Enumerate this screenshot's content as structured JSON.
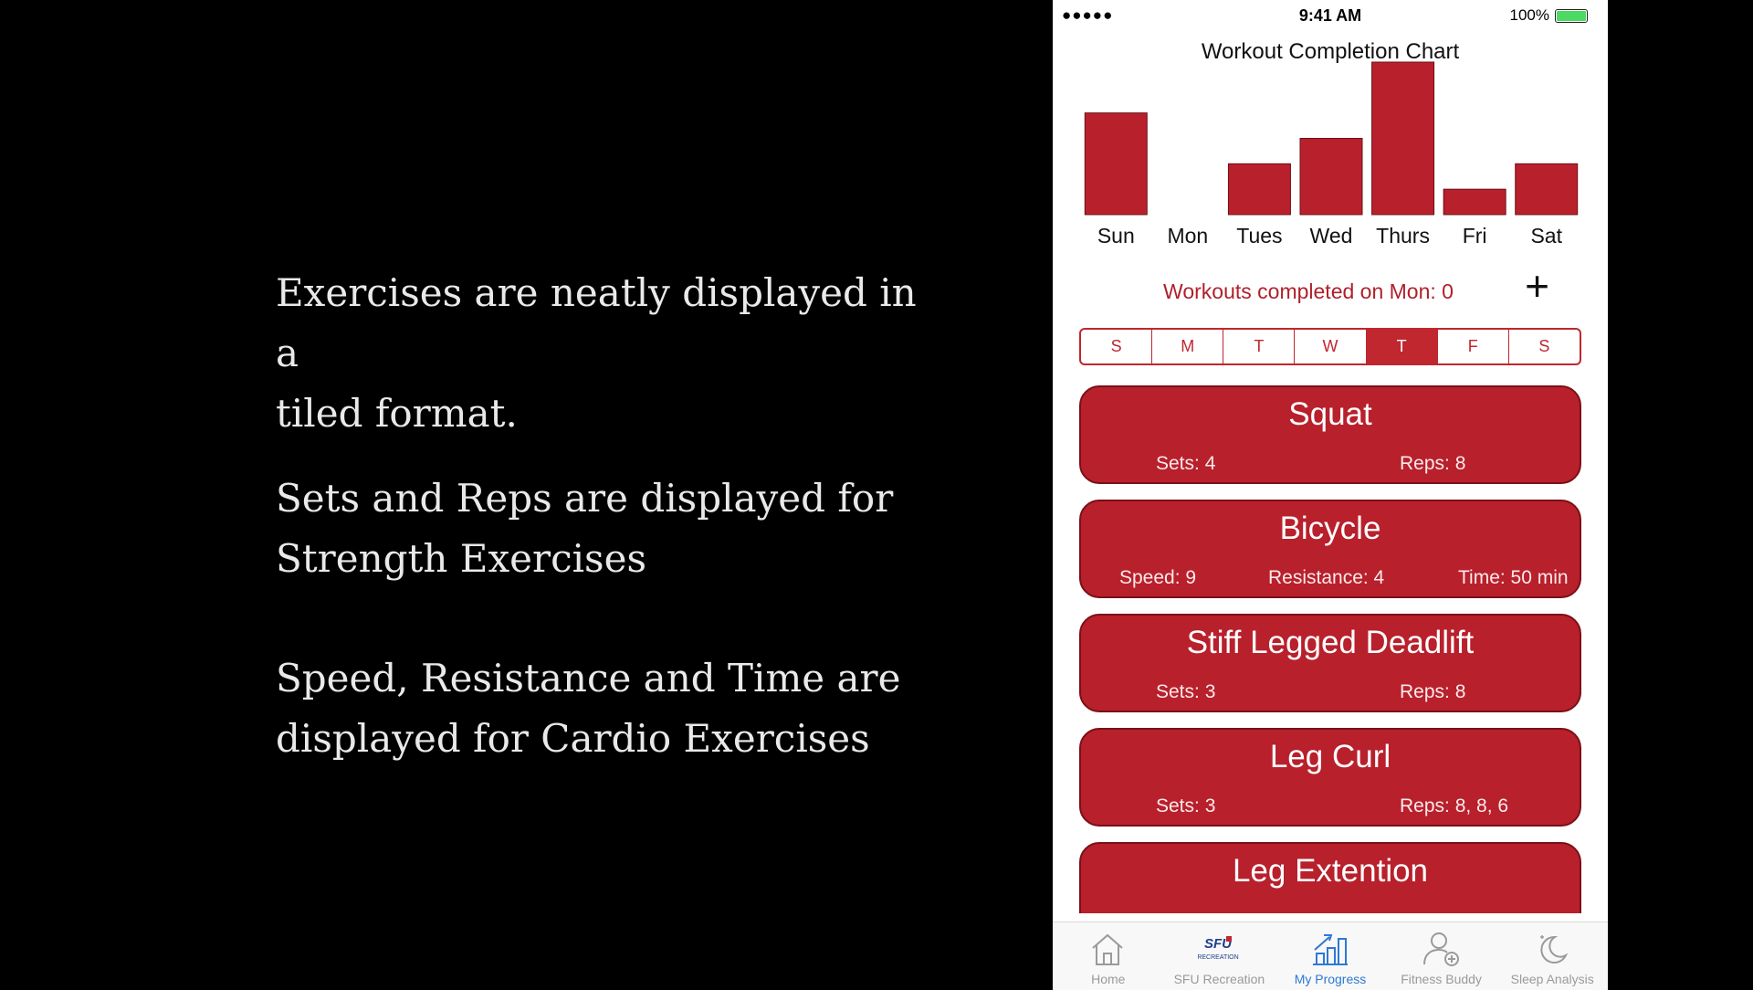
{
  "captions": [
    "Exercises are neatly displayed in a\ntiled format.",
    "Sets and Reps are displayed for\nStrength Exercises",
    "Speed, Resistance and Time are\ndisplayed for Cardio Exercises"
  ],
  "status_bar": {
    "signal": "●●●●●",
    "time": "9:41 AM",
    "battery": "100%"
  },
  "chart_data": {
    "type": "bar",
    "title": "Workout Completion Chart",
    "categories": [
      "Sun",
      "Mon",
      "Tues",
      "Wed",
      "Thurs",
      "Fri",
      "Sat"
    ],
    "values": [
      4,
      0,
      2,
      3,
      6,
      1,
      2
    ],
    "ylim": [
      0,
      6
    ],
    "grid": false,
    "bar_color": "#b8202c"
  },
  "summary": {
    "text": "Workouts completed on Mon: 0",
    "add_label": "+"
  },
  "day_selector": {
    "days": [
      "S",
      "M",
      "T",
      "W",
      "T",
      "F",
      "S"
    ],
    "active_index": 4,
    "accent": "#c0272e"
  },
  "exercises": [
    {
      "name": "Squat",
      "stats": [
        "Sets: 4",
        "Reps: 8"
      ]
    },
    {
      "name": "Bicycle",
      "stats": [
        "Speed: 9",
        "Resistance: 4",
        "Time: 50 min"
      ]
    },
    {
      "name": "Stiff Legged Deadlift",
      "stats": [
        "Sets: 3",
        "Reps: 8"
      ]
    },
    {
      "name": "Leg Curl",
      "stats": [
        "Sets: 3",
        "Reps: 8, 8, 6"
      ]
    },
    {
      "name": "Leg Extention",
      "stats": []
    }
  ],
  "tabbar": {
    "tabs": [
      {
        "label": "Home",
        "icon": "home-icon"
      },
      {
        "label": "SFU Recreation",
        "icon": "sfu-recreation-logo"
      },
      {
        "label": "My Progress",
        "icon": "progress-chart-icon"
      },
      {
        "label": "Fitness Buddy",
        "icon": "add-buddy-icon"
      },
      {
        "label": "Sleep Analysis",
        "icon": "moon-icon"
      }
    ],
    "active_index": 2,
    "active_color": "#2f78d4"
  }
}
